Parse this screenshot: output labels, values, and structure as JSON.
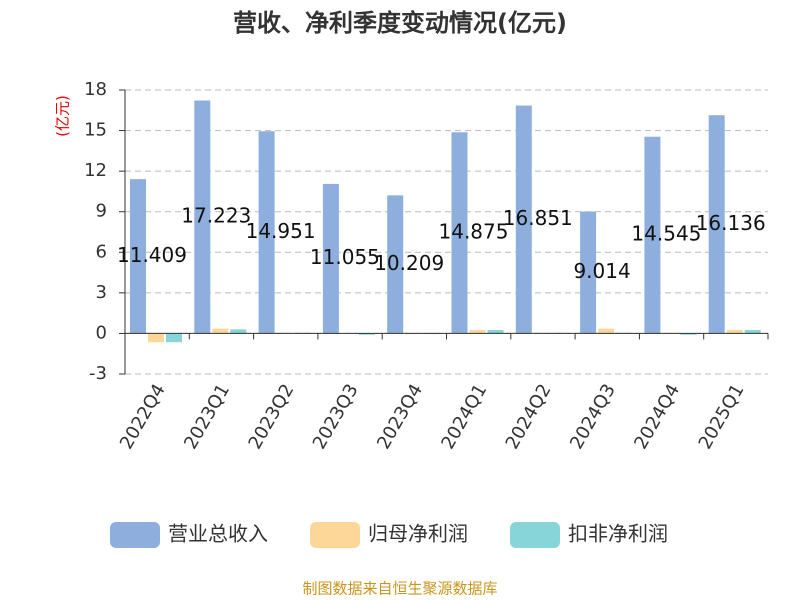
{
  "chart_data": {
    "type": "bar",
    "title": "营收、净利季度变动情况(亿元)",
    "y_label": "(亿元)",
    "source": "制图数据来自恒生聚源数据库",
    "categories": [
      "2022Q4",
      "2023Q1",
      "2023Q2",
      "2023Q3",
      "2023Q4",
      "2024Q1",
      "2024Q2",
      "2024Q3",
      "2024Q4",
      "2025Q1"
    ],
    "series": [
      {
        "name": "营业总收入",
        "color": "#8eaedd",
        "values": [
          11.409,
          17.223,
          14.951,
          11.055,
          10.209,
          14.875,
          16.851,
          9.014,
          14.545,
          16.136
        ],
        "show_labels": true
      },
      {
        "name": "归母净利润",
        "color": "#fdd797",
        "values": [
          -0.65,
          0.35,
          0.05,
          0.02,
          -0.05,
          0.25,
          0.05,
          0.35,
          -0.05,
          0.25
        ]
      },
      {
        "name": "扣非净利润",
        "color": "#87d5d8",
        "values": [
          -0.65,
          0.3,
          0.05,
          -0.1,
          -0.05,
          0.25,
          0.05,
          0.05,
          -0.1,
          0.25
        ]
      }
    ],
    "ylim": [
      -3,
      18
    ],
    "yticks": [
      -3,
      0,
      3,
      6,
      9,
      12,
      15,
      18
    ],
    "grid": true
  }
}
